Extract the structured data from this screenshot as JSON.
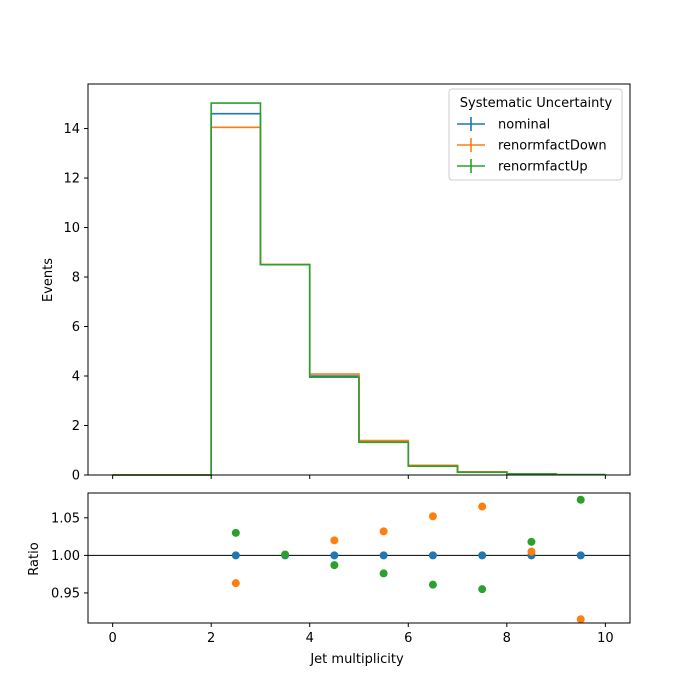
{
  "chart_data": [
    {
      "type": "line",
      "panel": "histogram",
      "x_edges": [
        0,
        1,
        2,
        3,
        4,
        5,
        6,
        7,
        8,
        9,
        10
      ],
      "series": [
        {
          "name": "nominal",
          "color": "#1f77b4",
          "values": [
            0,
            0,
            14.6,
            8.5,
            4.0,
            1.35,
            0.37,
            0.12,
            0.04,
            0.012
          ]
        },
        {
          "name": "renormfactDown",
          "color": "#ff7f0e",
          "values": [
            0,
            0,
            14.05,
            8.51,
            4.08,
            1.39,
            0.39,
            0.128,
            0.04,
            0.011
          ]
        },
        {
          "name": "renormfactUp",
          "color": "#2ca02c",
          "values": [
            0,
            0,
            15.03,
            8.5,
            3.95,
            1.32,
            0.355,
            0.114,
            0.041,
            0.0129
          ]
        }
      ],
      "xlim": [
        -0.5,
        10.5
      ],
      "ylim": [
        0,
        15.8
      ],
      "yticks": [
        0,
        2,
        4,
        6,
        8,
        10,
        12,
        14
      ],
      "xticks": [
        0,
        2,
        4,
        6,
        8,
        10
      ],
      "ylabel": "Events",
      "legend": {
        "title": "Systematic Uncertainty",
        "placement": "top-right"
      }
    },
    {
      "type": "scatter",
      "panel": "ratio",
      "x": [
        2.5,
        3.5,
        4.5,
        5.5,
        6.5,
        7.5,
        8.5,
        9.5
      ],
      "series": [
        {
          "name": "nominal",
          "color": "#1f77b4",
          "values": [
            1.0,
            1.0,
            1.0,
            1.0,
            1.0,
            1.0,
            1.0,
            1.0
          ]
        },
        {
          "name": "renormfactDown",
          "color": "#ff7f0e",
          "values": [
            0.963,
            1.001,
            1.02,
            1.032,
            1.052,
            1.065,
            1.005,
            0.915
          ]
        },
        {
          "name": "renormfactUp",
          "color": "#2ca02c",
          "values": [
            1.03,
            1.001,
            0.987,
            0.976,
            0.961,
            0.955,
            1.018,
            1.074
          ]
        }
      ],
      "reference_line": 1.0,
      "xlim": [
        -0.5,
        10.5
      ],
      "ylim": [
        0.91,
        1.083
      ],
      "yticks": [
        0.95,
        1.0,
        1.05
      ],
      "ytick_labels": [
        "0.95",
        "1.00",
        "1.05"
      ],
      "xticks": [
        0,
        2,
        4,
        6,
        8,
        10
      ],
      "xlabel": "Jet multiplicity",
      "ylabel": "Ratio"
    }
  ]
}
